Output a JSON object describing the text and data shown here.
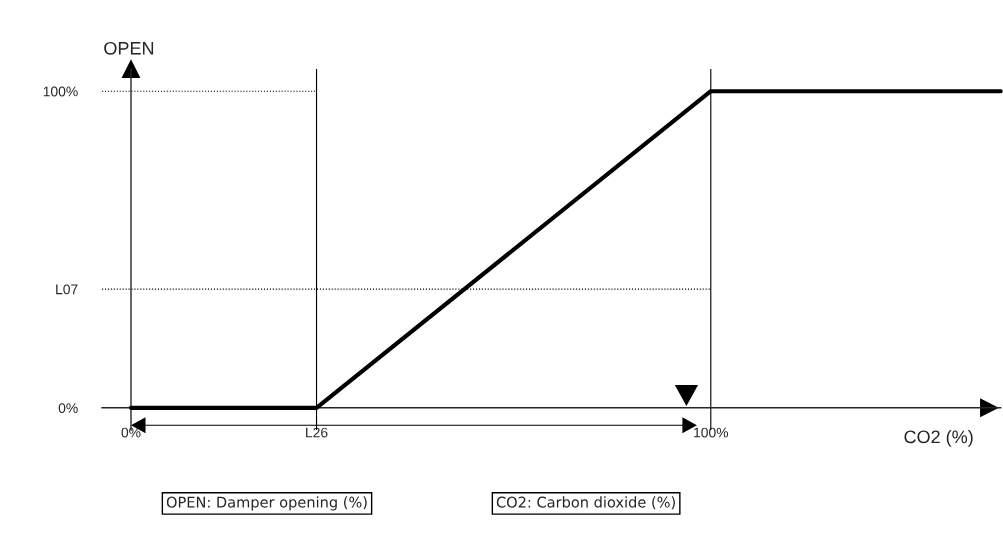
{
  "chart_data": {
    "type": "line",
    "xlabel": "CO2 (%)",
    "ylabel": "OPEN",
    "x": [
      0,
      32,
      100,
      150
    ],
    "series": [
      {
        "color": "#000000",
        "values": [
          0,
          0,
          100,
          100
        ]
      }
    ],
    "xlim": [
      -5,
      150
    ],
    "ylim": [
      -7,
      107
    ],
    "xticks": [
      {
        "value": 0,
        "label": "0%"
      },
      {
        "value": 32,
        "label": "L26"
      },
      {
        "value": 100,
        "label": "100%"
      }
    ],
    "yticks": [
      {
        "value": 0,
        "label": "0%"
      },
      {
        "value": 37.5,
        "label": "L07"
      },
      {
        "value": 100,
        "label": "100%"
      }
    ],
    "ref_lines": [
      {
        "axis": "x",
        "value": 32,
        "line_style": "solid"
      },
      {
        "axis": "x",
        "value": 100,
        "line_style": "solid"
      },
      {
        "axis": "y",
        "value": 100,
        "line_style": "dotted"
      },
      {
        "axis": "y",
        "value": 37.5,
        "line_style": "dotted"
      }
    ],
    "annotations": [
      "OPEN: Damper opening (%)",
      "CO2: Carbon dioxide (%)"
    ],
    "grid": false,
    "legend": false,
    "marker": "none",
    "line_style": "solid"
  }
}
